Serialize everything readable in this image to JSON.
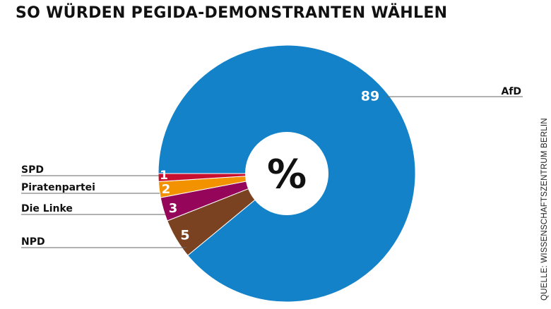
{
  "chart_data": {
    "type": "pie",
    "title": "SO WÜRDEN PEGIDA-DEMONSTRANTEN WÄHLEN",
    "center_label": "%",
    "source": "QUELLE: WISSENSCHAFTSZENTRUM BERLIN",
    "categories": [
      "AfD",
      "SPD",
      "Piratenpartei",
      "Die Linke",
      "NPD"
    ],
    "values": [
      89,
      1,
      2,
      3,
      5
    ],
    "colors": [
      "#1482c8",
      "#c8102e",
      "#f39200",
      "#95065a",
      "#7a4221"
    ],
    "value_labels": [
      "89",
      "1",
      "2",
      "3",
      "5"
    ]
  }
}
